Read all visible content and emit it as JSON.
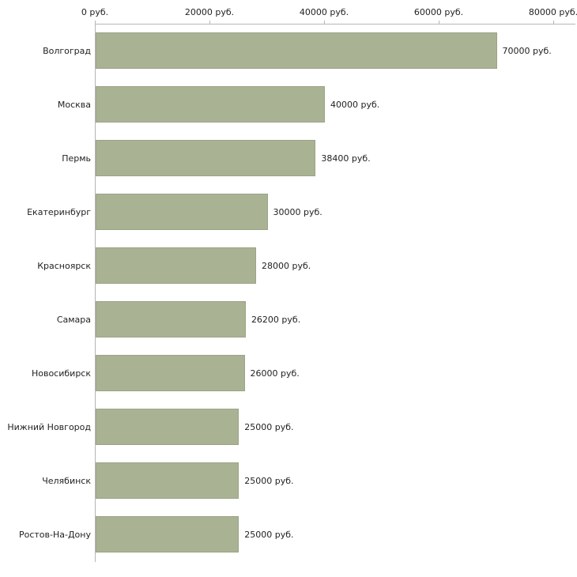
{
  "chart_data": {
    "type": "bar",
    "orientation": "horizontal",
    "title": "",
    "xlabel": "",
    "ylabel": "",
    "categories": [
      "Волгоград",
      "Москва",
      "Пермь",
      "Екатеринбург",
      "Красноярск",
      "Самара",
      "Новосибирск",
      "Нижний Новгород",
      "Челябинск",
      "Ростов-На-Дону"
    ],
    "values": [
      70000,
      40000,
      38400,
      30000,
      28000,
      26200,
      26000,
      25000,
      25000,
      25000
    ],
    "value_labels": [
      "70000 руб.",
      "40000 руб.",
      "38400 руб.",
      "30000 руб.",
      "28000 руб.",
      "26200 руб.",
      "26000 руб.",
      "25000 руб.",
      "25000 руб.",
      "25000 руб."
    ],
    "x_ticks": [
      "0 руб.",
      "20000 руб.",
      "40000 руб.",
      "60000 руб.",
      "80000 руб."
    ],
    "x_tick_values": [
      0,
      20000,
      40000,
      60000,
      80000
    ],
    "xlim": [
      0,
      80000
    ],
    "grid": false,
    "legend": false,
    "colors": {
      "bar_fill": "#a9b293",
      "bar_border": "#9ba487",
      "axis": "#b6b6b6",
      "text": "#222222",
      "background": "#ffffff"
    }
  }
}
